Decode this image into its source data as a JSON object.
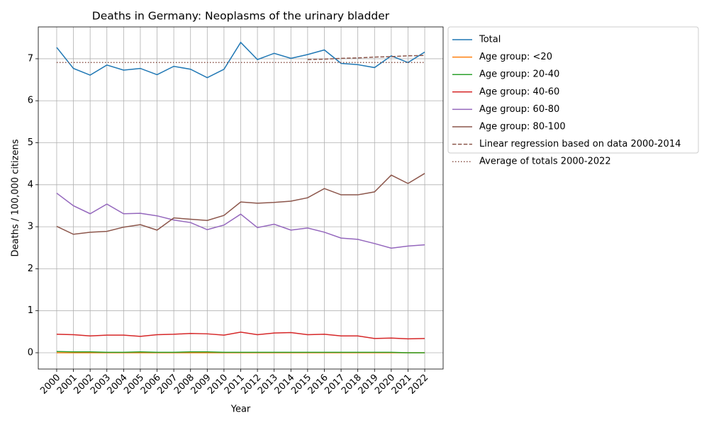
{
  "chart_data": {
    "type": "line",
    "title": "Deaths in Germany: Neoplasms of the urinary bladder",
    "x_label": "Year",
    "y_label": "Deaths / 100,000 citizens",
    "x": [
      2000,
      2001,
      2002,
      2003,
      2004,
      2005,
      2006,
      2007,
      2008,
      2009,
      2010,
      2011,
      2012,
      2013,
      2014,
      2015,
      2016,
      2017,
      2018,
      2019,
      2020,
      2021,
      2022
    ],
    "xlim": [
      1998.9,
      2023.1
    ],
    "xticks": [
      2000,
      2001,
      2002,
      2003,
      2004,
      2005,
      2006,
      2007,
      2008,
      2009,
      2010,
      2011,
      2012,
      2013,
      2014,
      2015,
      2016,
      2017,
      2018,
      2019,
      2020,
      2021,
      2022
    ],
    "ylim": [
      -0.388,
      7.758
    ],
    "yticks": [
      0,
      1,
      2,
      3,
      4,
      5,
      6,
      7
    ],
    "grid": true,
    "legend": "outside upper left",
    "series": [
      {
        "name": "Total",
        "color": "#1f77b4",
        "style": "solid",
        "values": [
          7.27,
          6.77,
          6.61,
          6.85,
          6.73,
          6.77,
          6.62,
          6.82,
          6.75,
          6.55,
          6.75,
          7.39,
          6.98,
          7.13,
          7.01,
          7.1,
          7.21,
          6.89,
          6.86,
          6.79,
          7.07,
          6.91,
          7.16
        ]
      },
      {
        "name": "Age group: <20",
        "color": "#ff7f0e",
        "style": "solid",
        "values": [
          0,
          0,
          0,
          0,
          0,
          0,
          0,
          0,
          0,
          0,
          0,
          0,
          0,
          0,
          0,
          0,
          0,
          0,
          0,
          0,
          0,
          0,
          0
        ]
      },
      {
        "name": "Age group: 20-40",
        "color": "#2ca02c",
        "style": "solid",
        "values": [
          0.03,
          0.02,
          0.02,
          0.01,
          0.01,
          0.02,
          0.01,
          0.01,
          0.02,
          0.02,
          0.01,
          0.01,
          0.01,
          0.01,
          0.01,
          0.01,
          0.01,
          0.01,
          0.01,
          0.01,
          0.01,
          0,
          0
        ]
      },
      {
        "name": "Age group: 40-60",
        "color": "#d62728",
        "style": "solid",
        "values": [
          0.44,
          0.43,
          0.4,
          0.42,
          0.42,
          0.39,
          0.43,
          0.44,
          0.46,
          0.45,
          0.42,
          0.49,
          0.43,
          0.47,
          0.48,
          0.43,
          0.44,
          0.4,
          0.4,
          0.34,
          0.35,
          0.33,
          0.34
        ]
      },
      {
        "name": "Age group: 60-80",
        "color": "#9467bd",
        "style": "solid",
        "values": [
          3.8,
          3.5,
          3.31,
          3.54,
          3.31,
          3.32,
          3.26,
          3.16,
          3.1,
          2.93,
          3.04,
          3.3,
          2.98,
          3.06,
          2.92,
          2.97,
          2.87,
          2.73,
          2.7,
          2.6,
          2.49,
          2.54,
          2.57
        ]
      },
      {
        "name": "Age group: 80-100",
        "color": "#8c564b",
        "style": "solid",
        "values": [
          3.01,
          2.82,
          2.87,
          2.89,
          2.99,
          3.05,
          2.92,
          3.21,
          3.18,
          3.15,
          3.27,
          3.59,
          3.56,
          3.58,
          3.61,
          3.69,
          3.91,
          3.76,
          3.76,
          3.83,
          4.23,
          4.03,
          4.27
        ]
      },
      {
        "name": "Linear regression based on data 2000-2014",
        "color": "#8c564b",
        "style": "dashed",
        "x": [
          2015,
          2016,
          2017,
          2018,
          2019,
          2020,
          2021,
          2022
        ],
        "values": [
          6.98,
          6.99,
          7.01,
          7.02,
          7.04,
          7.05,
          7.07,
          7.08
        ]
      },
      {
        "name": "Average of totals 2000-2022",
        "color": "#8c564b",
        "style": "dotted",
        "values": [
          6.91,
          6.91,
          6.91,
          6.91,
          6.91,
          6.91,
          6.91,
          6.91,
          6.91,
          6.91,
          6.91,
          6.91,
          6.91,
          6.91,
          6.91,
          6.91,
          6.91,
          6.91,
          6.91,
          6.91,
          6.91,
          6.91,
          6.91
        ]
      }
    ]
  }
}
